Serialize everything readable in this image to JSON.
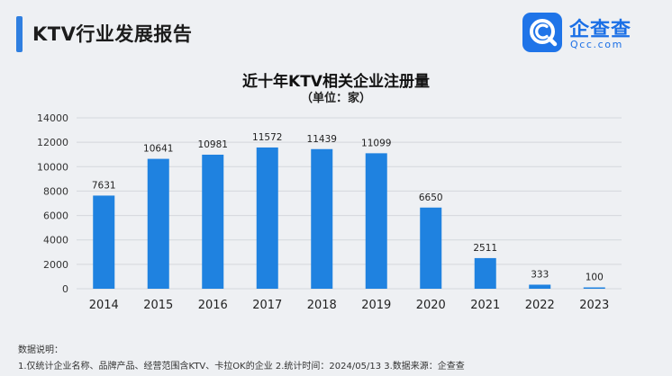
{
  "header": {
    "title": "KTV行业发展报告",
    "logo_name": "企查查",
    "logo_domain": "Qcc.com",
    "logo_icon": "magnifier-c-icon"
  },
  "colors": {
    "accent": "#2f7fe0",
    "bar": "#1f82e0",
    "brand": "#1f74e8"
  },
  "notes": {
    "heading": "数据说明：",
    "text": "1.仅统计企业名称、品牌产品、经营范围含KTV、卡拉OK的企业  2.统计时间：2024/05/13  3.数据来源：企查查"
  },
  "chart_data": {
    "type": "bar",
    "title": "近十年KTV相关企业注册量",
    "subtitle": "（单位：家）",
    "categories": [
      "2014",
      "2015",
      "2016",
      "2017",
      "2018",
      "2019",
      "2020",
      "2021",
      "2022",
      "2023"
    ],
    "values": [
      7631,
      10641,
      10981,
      11572,
      11439,
      11099,
      6650,
      2511,
      333,
      100
    ],
    "ylim": [
      0,
      14000
    ],
    "yticks": [
      0,
      2000,
      4000,
      6000,
      8000,
      10000,
      12000,
      14000
    ],
    "grid": true,
    "xlabel": "",
    "ylabel": ""
  }
}
